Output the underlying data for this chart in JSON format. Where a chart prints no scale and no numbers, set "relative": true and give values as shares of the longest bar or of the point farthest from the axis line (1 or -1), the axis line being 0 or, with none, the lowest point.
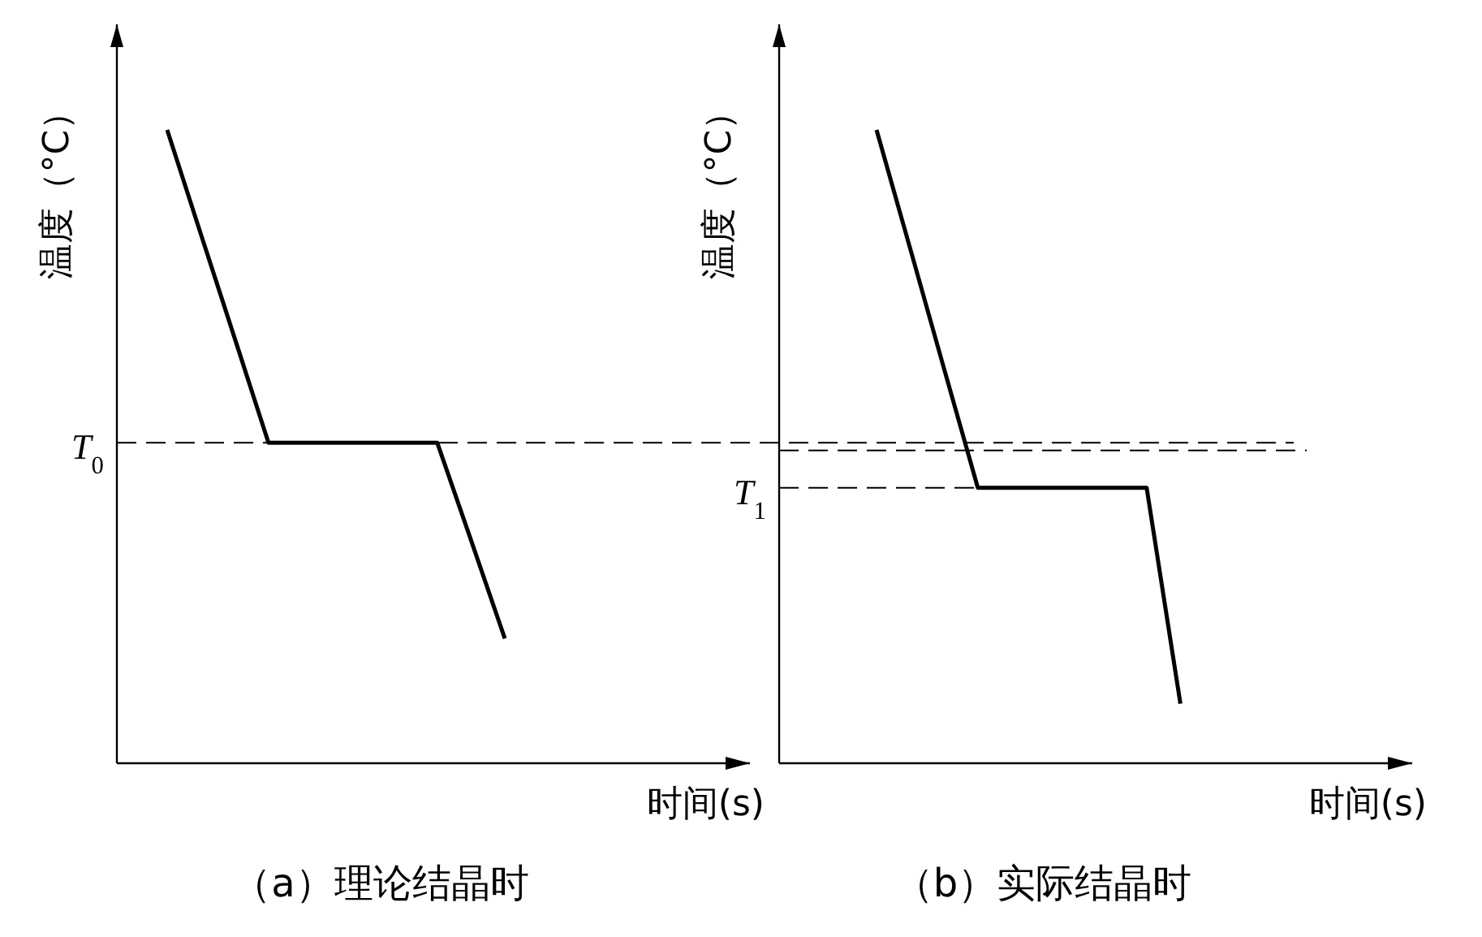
{
  "chart_data": [
    {
      "type": "line",
      "title": "（a）理论结晶时",
      "xlabel": "时间(s)",
      "ylabel": "温度（°C）",
      "relative": true,
      "categories": [
        null,
        null,
        null,
        null,
        null,
        null,
        null,
        null,
        null,
        null,
        null
      ],
      "series": [
        {
          "color": "#000000",
          "values": [
            1,
            0.835,
            0.671,
            0.506,
            0.506,
            0.506,
            0.506,
            0.506,
            0.506,
            0.352,
            0.197
          ]
        }
      ],
      "ref_lines": [
        {
          "axis": "y",
          "value": 0.506,
          "label": "T$_{0}$",
          "line_style": "dashed"
        }
      ]
    },
    {
      "type": "line",
      "title": "（b）实际结晶时",
      "xlabel": "时间(s)",
      "ylabel": "温度（°C）",
      "relative": true,
      "categories": [
        null,
        null,
        null,
        null,
        null,
        null,
        null,
        null,
        null,
        null
      ],
      "series": [
        {
          "color": "#000000",
          "values": [
            1,
            0.812,
            0.623,
            0.435,
            0.435,
            0.435,
            0.435,
            0.435,
            0.435,
            0.094
          ]
        }
      ],
      "ref_lines": [
        {
          "axis": "y",
          "value": 0.494,
          "label": null,
          "line_style": "dashed"
        },
        {
          "axis": "y",
          "value": 0.435,
          "label": "T$_{1}$",
          "line_style": "dashed"
        }
      ]
    }
  ]
}
